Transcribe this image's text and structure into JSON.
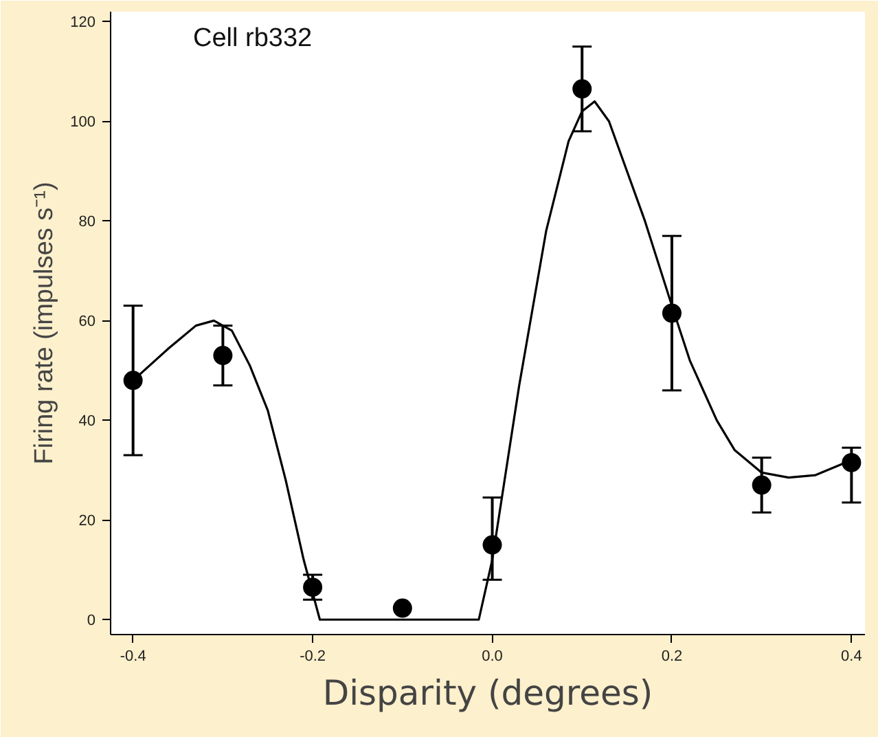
{
  "chart_data": {
    "type": "scatter",
    "title": "Cell rb332",
    "xlabel": "Disparity (degrees)",
    "ylabel": "Firing rate (impulses s⁻¹)",
    "x": [
      -0.4,
      -0.3,
      -0.2,
      -0.1,
      0.0,
      0.1,
      0.2,
      0.3,
      0.4
    ],
    "series": [
      {
        "color": "#000000",
        "marker": "circle",
        "values": [
          48,
          53,
          6.5,
          2.3,
          15,
          106.5,
          61.5,
          27,
          31.5
        ],
        "errors": [
          [
            33,
            63
          ],
          [
            47,
            59
          ],
          [
            4,
            9
          ],
          null,
          [
            8,
            24.5
          ],
          [
            98,
            115
          ],
          [
            46,
            77
          ],
          [
            21.5,
            32.5
          ],
          [
            23.5,
            34.5
          ]
        ]
      },
      {
        "type": "line",
        "color": "#000000",
        "line_style": "solid",
        "x": [
          -0.4,
          -0.36,
          -0.33,
          -0.31,
          -0.29,
          -0.27,
          -0.25,
          -0.23,
          -0.21,
          -0.192,
          -0.015,
          0.0,
          0.03,
          0.06,
          0.085,
          0.1,
          0.114,
          0.13,
          0.15,
          0.17,
          0.2,
          0.22,
          0.25,
          0.27,
          0.3,
          0.33,
          0.36,
          0.4
        ],
        "values": [
          48,
          54.5,
          59,
          60,
          58,
          51,
          42,
          28,
          12,
          0,
          0,
          12,
          47,
          78,
          96,
          102,
          104,
          100,
          90,
          80,
          63,
          52,
          40,
          34,
          29.5,
          28.5,
          29,
          32
        ]
      }
    ],
    "xlim": [
      -0.425,
      0.415
    ],
    "ylim": [
      -3,
      122
    ],
    "xticks": [
      {
        "value": -0.4,
        "label": "-0.4"
      },
      {
        "value": -0.2,
        "label": "-0.2"
      },
      {
        "value": 0.0,
        "label": "0.0"
      },
      {
        "value": 0.2,
        "label": "0.2"
      },
      {
        "value": 0.4,
        "label": "0.4"
      }
    ],
    "yticks": [
      0,
      20,
      40,
      60,
      80,
      100,
      120
    ],
    "grid": false
  }
}
